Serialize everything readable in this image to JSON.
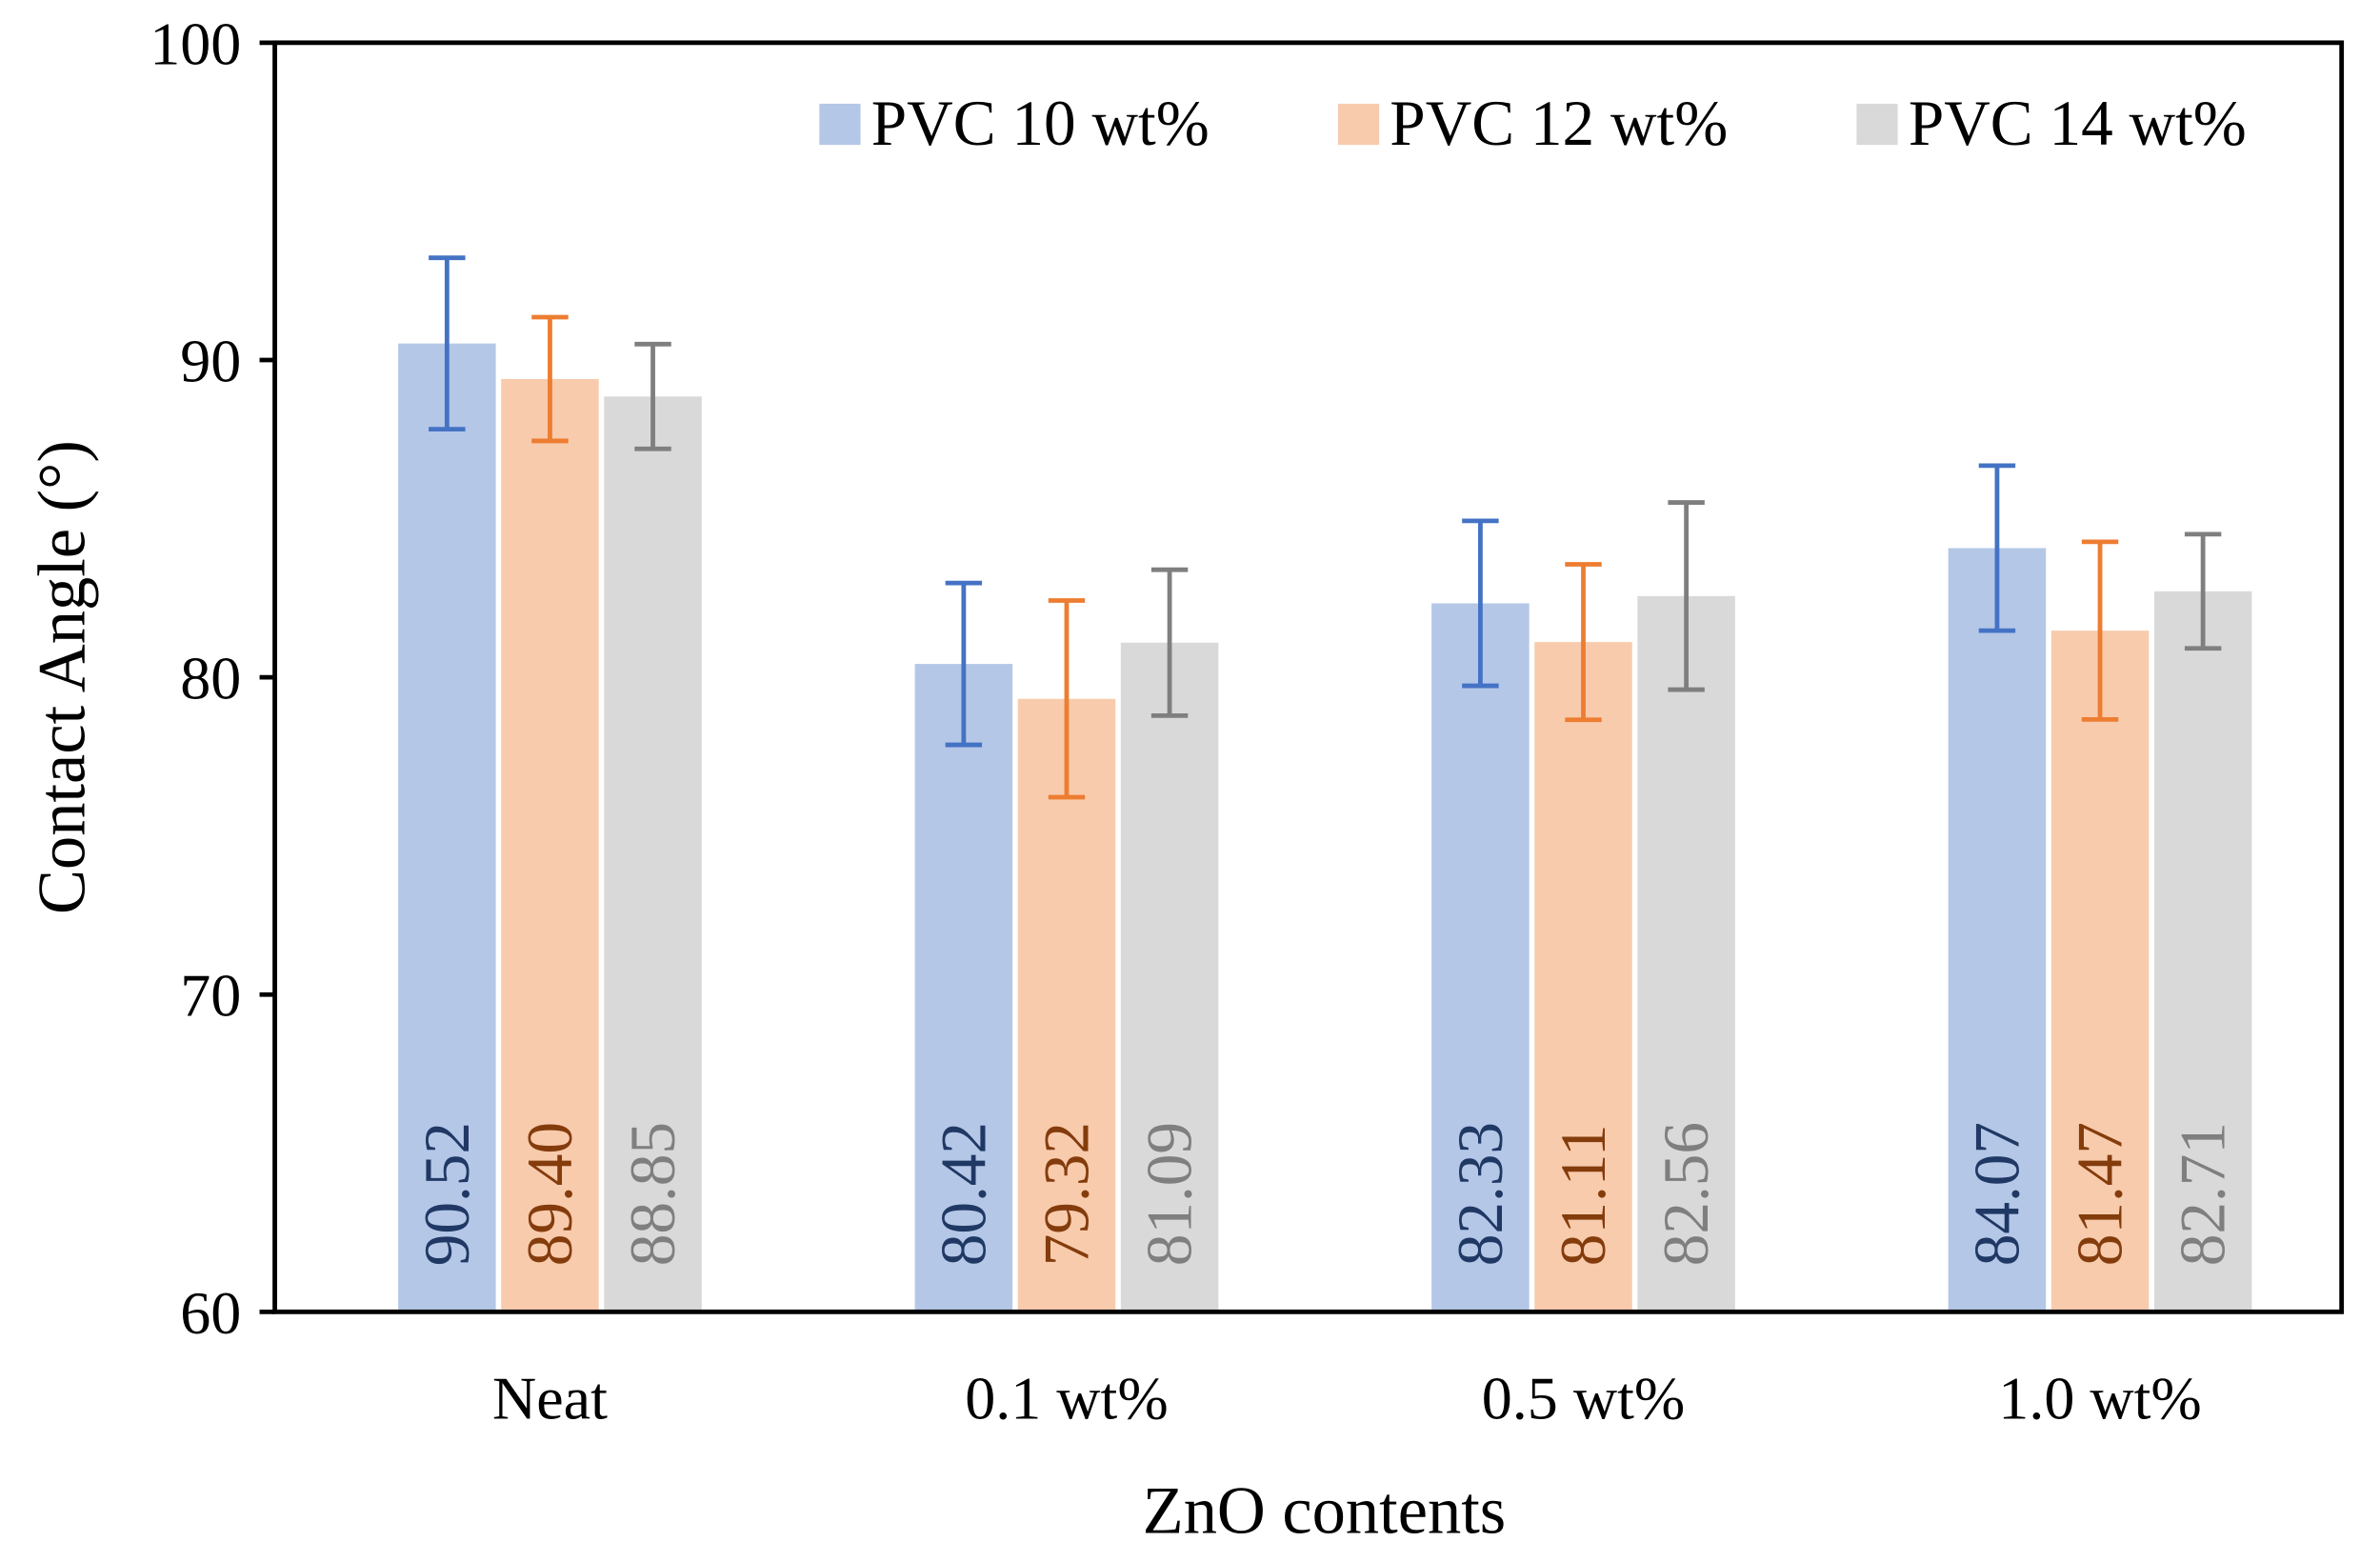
{
  "chart_data": {
    "type": "bar",
    "title": "",
    "xlabel": "ZnO contents",
    "ylabel": "Contact Angle (°)",
    "ylim": [
      60,
      100
    ],
    "yticks": [
      "60",
      "70",
      "80",
      "90",
      "100"
    ],
    "grid": false,
    "legend_position": "top-right",
    "categories": [
      "Neat",
      "0.1 wt%",
      "0.5 wt%",
      "1.0 wt%"
    ],
    "series": [
      {
        "name": "PVC 10 wt%",
        "values": [
          90.52,
          80.42,
          82.33,
          84.07
        ],
        "labels": [
          "90.52",
          "80.42",
          "82.33",
          "84.07"
        ],
        "errors": [
          2.7,
          2.55,
          2.6,
          2.6
        ],
        "color": "#B4C7E7",
        "error_color": "#4472C4",
        "label_color": "#203864"
      },
      {
        "name": "PVC 12 wt%",
        "values": [
          89.4,
          79.32,
          81.11,
          81.47
        ],
        "labels": [
          "89.40",
          "79.32",
          "81.11",
          "81.47"
        ],
        "errors": [
          1.95,
          3.1,
          2.45,
          2.8
        ],
        "color": "#F8CBAD",
        "error_color": "#ED7D31",
        "label_color": "#843C0C"
      },
      {
        "name": "PVC 14 wt%",
        "values": [
          88.85,
          81.09,
          82.56,
          82.71
        ],
        "labels": [
          "88.85",
          "81.09",
          "82.56",
          "82.71"
        ],
        "errors": [
          1.65,
          2.3,
          2.95,
          1.8
        ],
        "color": "#D9D9D9",
        "error_color": "#7F7F7F",
        "label_color": "#7F7F7F"
      }
    ]
  }
}
